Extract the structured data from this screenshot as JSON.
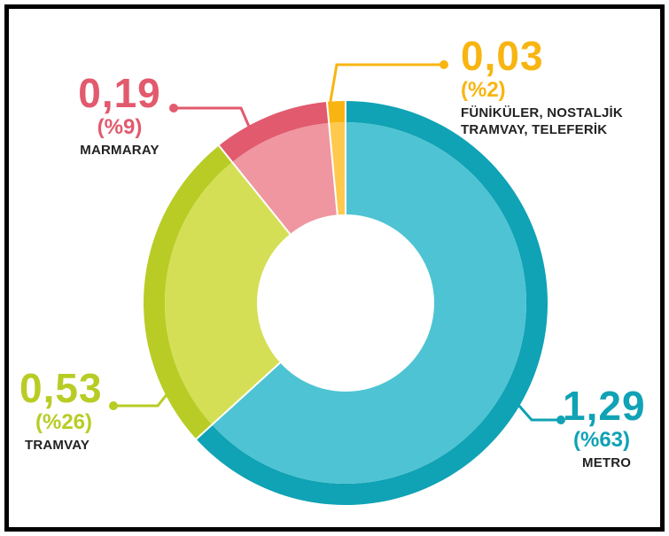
{
  "chart_data": {
    "type": "pie",
    "variant": "donut",
    "slices": [
      {
        "label": "METRO",
        "value": 1.29,
        "value_text": "1,29",
        "percent_text": "(%63)",
        "color": "#4ec3d3",
        "ring_color": "#10a2b5"
      },
      {
        "label": "TRAMVAY",
        "value": 0.53,
        "value_text": "0,53",
        "percent_text": "(%26)",
        "color": "#d4df55",
        "ring_color": "#b8cc25"
      },
      {
        "label": "MARMARAY",
        "value": 0.19,
        "value_text": "0,19",
        "percent_text": "(%9)",
        "color": "#ef96a0",
        "ring_color": "#e25a6d"
      },
      {
        "label": "FÜNİKÜLER, NOSTALJİK TRAMVAY, TELEFERİK",
        "value": 0.03,
        "value_text": "0,03",
        "percent_text": "(%2)",
        "color": "#ffc94d",
        "ring_color": "#f8b512"
      }
    ],
    "label_lines": {
      "funikuler_line1": "FÜNİKÜLER, NOSTALJİK",
      "funikuler_line2": "TRAMVAY, TELEFERİK"
    },
    "title": "",
    "legend": "none (direct labels)"
  }
}
